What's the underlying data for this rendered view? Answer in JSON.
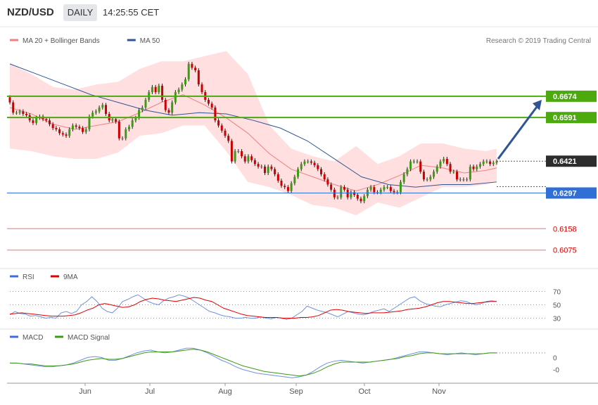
{
  "header": {
    "symbol": "NZD/USD",
    "timeframe": "DAILY",
    "time": "14:25:55 CET"
  },
  "price_panel": {
    "legend": [
      {
        "label": "MA 20 + Bollinger Bands",
        "color": "#f08080"
      },
      {
        "label": "MA 50",
        "color": "#2f5597"
      }
    ],
    "credit": "Research © 2019 Trading Central"
  },
  "levels": {
    "green": [
      {
        "value": 0.6674,
        "label": "0.6674"
      },
      {
        "value": 0.6591,
        "label": "0.6591"
      }
    ],
    "current": {
      "value": 0.6421,
      "label": "0.6421"
    },
    "blue": {
      "value": 0.6297,
      "label": "0.6297"
    },
    "red": [
      {
        "value": 0.6158,
        "label": "0.6158"
      },
      {
        "value": 0.6075,
        "label": "0.6075"
      }
    ]
  },
  "rsi_panel": {
    "legend": [
      {
        "label": "RSI",
        "color": "#4169e1"
      },
      {
        "label": "9MA",
        "color": "#e00000"
      }
    ],
    "ticks": [
      "70",
      "50",
      "30"
    ]
  },
  "macd_panel": {
    "legend": [
      {
        "label": "MACD",
        "color": "#4169e1"
      },
      {
        "label": "MACD Signal",
        "color": "#3c9a14"
      }
    ],
    "ticks": [
      "0",
      "-0"
    ]
  },
  "x_axis": {
    "months": [
      "Jun",
      "Jul",
      "Aug",
      "Sep",
      "Oct",
      "Nov"
    ]
  },
  "colors": {
    "bull": "#3c9a14",
    "bear": "#cc0000",
    "band": "#ffd9d9",
    "ma20": "#f08080",
    "ma50": "#2f5597",
    "arrow": "#2f5597"
  },
  "chart_data": [
    {
      "type": "candlestick",
      "title": "NZD/USD",
      "timeframe": "DAILY",
      "ylim": [
        0.603,
        0.689
      ],
      "series": [
        {
          "name": "MA 20 + Bollinger Bands",
          "values_x": [
            0,
            8,
            16,
            24,
            32,
            40,
            48,
            56,
            64,
            72,
            80,
            88,
            96,
            104,
            112,
            120,
            128,
            136,
            144,
            152,
            160,
            168,
            176,
            180
          ],
          "mid": [
            0.663,
            0.6605,
            0.6565,
            0.6545,
            0.656,
            0.6575,
            0.661,
            0.665,
            0.668,
            0.664,
            0.659,
            0.653,
            0.645,
            0.639,
            0.636,
            0.633,
            0.6305,
            0.633,
            0.6365,
            0.6405,
            0.6395,
            0.6375,
            0.6385,
            0.6395
          ],
          "upper": [
            0.68,
            0.676,
            0.671,
            0.67,
            0.672,
            0.673,
            0.678,
            0.681,
            0.681,
            0.683,
            0.685,
            0.676,
            0.656,
            0.647,
            0.644,
            0.642,
            0.648,
            0.641,
            0.644,
            0.649,
            0.649,
            0.647,
            0.646,
            0.647
          ],
          "lower": [
            0.647,
            0.646,
            0.644,
            0.643,
            0.643,
            0.6455,
            0.652,
            0.653,
            0.656,
            0.656,
            0.646,
            0.634,
            0.632,
            0.629,
            0.625,
            0.624,
            0.621,
            0.626,
            0.624,
            0.628,
            0.632,
            0.632,
            0.633,
            0.634
          ]
        },
        {
          "name": "MA 50",
          "values_x": [
            0,
            10,
            20,
            30,
            40,
            50,
            60,
            70,
            80,
            90,
            100,
            110,
            120,
            130,
            140,
            150,
            160,
            170,
            180
          ],
          "values": [
            0.68,
            0.676,
            0.672,
            0.668,
            0.665,
            0.662,
            0.66,
            0.661,
            0.6605,
            0.658,
            0.655,
            0.65,
            0.643,
            0.636,
            0.633,
            0.632,
            0.633,
            0.633,
            0.634
          ]
        }
      ],
      "candles": {
        "start_index": 0,
        "closes": [
          0.665,
          0.661,
          0.661,
          0.6615,
          0.6605,
          0.66,
          0.658,
          0.657,
          0.659,
          0.6595,
          0.6585,
          0.658,
          0.6565,
          0.655,
          0.6545,
          0.653,
          0.6525,
          0.652,
          0.6545,
          0.656,
          0.6555,
          0.655,
          0.6535,
          0.6545,
          0.6595,
          0.661,
          0.6615,
          0.663,
          0.664,
          0.6605,
          0.658,
          0.6585,
          0.6575,
          0.651,
          0.651,
          0.6545,
          0.6555,
          0.658,
          0.659,
          0.662,
          0.663,
          0.666,
          0.669,
          0.671,
          0.669,
          0.6715,
          0.666,
          0.662,
          0.661,
          0.665,
          0.669,
          0.67,
          0.672,
          0.674,
          0.68,
          0.6785,
          0.6775,
          0.672,
          0.669,
          0.666,
          0.6645,
          0.663,
          0.658,
          0.656,
          0.654,
          0.652,
          0.65,
          0.642,
          0.646,
          0.646,
          0.644,
          0.642,
          0.644,
          0.6425,
          0.641,
          0.64,
          0.64,
          0.6375,
          0.64,
          0.639,
          0.637,
          0.6345,
          0.6325,
          0.632,
          0.6305,
          0.6335,
          0.636,
          0.639,
          0.641,
          0.642,
          0.642,
          0.6415,
          0.6405,
          0.639,
          0.637,
          0.635,
          0.633,
          0.631,
          0.628,
          0.628,
          0.632,
          0.631,
          0.628,
          0.63,
          0.629,
          0.6275,
          0.6265,
          0.6285,
          0.631,
          0.632,
          0.63,
          0.63,
          0.631,
          0.632,
          0.632,
          0.6305,
          0.63,
          0.63,
          0.634,
          0.637,
          0.639,
          0.642,
          0.642,
          0.642,
          0.638,
          0.635,
          0.635,
          0.636,
          0.638,
          0.64,
          0.642,
          0.643,
          0.641,
          0.638,
          0.638,
          0.635,
          0.635,
          0.635,
          0.635,
          0.64,
          0.639,
          0.64,
          0.641,
          0.642,
          0.642,
          0.641,
          0.6415,
          0.642
        ],
        "note_values_x_max": 180
      }
    },
    {
      "type": "line",
      "title": "RSI",
      "ylim": [
        20,
        80
      ],
      "ticks": [
        70,
        50,
        30
      ],
      "series": [
        {
          "name": "RSI",
          "values": [
            35,
            40,
            37,
            36,
            33,
            34,
            32,
            30,
            31,
            30,
            38,
            40,
            37,
            40,
            50,
            55,
            62,
            55,
            45,
            40,
            38,
            45,
            55,
            58,
            62,
            65,
            60,
            55,
            52,
            50,
            56,
            60,
            62,
            65,
            63,
            60,
            55,
            50,
            45,
            40,
            38,
            35,
            33,
            32,
            30,
            30,
            31,
            30,
            30,
            32,
            30,
            29,
            31,
            30,
            28,
            30,
            35,
            40,
            48,
            45,
            42,
            40,
            38,
            35,
            32,
            36,
            40,
            38,
            36,
            35,
            37,
            40,
            42,
            44,
            40,
            45,
            50,
            55,
            60,
            62,
            56,
            52,
            50,
            48,
            47,
            50,
            52,
            54,
            56,
            55,
            52,
            50,
            52,
            55,
            56,
            55
          ]
        },
        {
          "name": "9MA",
          "values": [
            36,
            37,
            38,
            37,
            36,
            35,
            34,
            33,
            33,
            33,
            34,
            35,
            38,
            42,
            45,
            50,
            52,
            50,
            48,
            46,
            47,
            50,
            55,
            58,
            60,
            59,
            57,
            56,
            55,
            57,
            59,
            61,
            60,
            57,
            55,
            50,
            45,
            42,
            39,
            36,
            34,
            33,
            32,
            31,
            31,
            31,
            30,
            30,
            30,
            31,
            31,
            32,
            34,
            38,
            42,
            43,
            42,
            40,
            39,
            38,
            37,
            38,
            38,
            38,
            39,
            40,
            41,
            43,
            44,
            45,
            47,
            50,
            53,
            55,
            55,
            54,
            53,
            52,
            52,
            53,
            54,
            55,
            55
          ]
        }
      ]
    },
    {
      "type": "line",
      "title": "MACD",
      "ticks": [
        "0",
        "-0"
      ],
      "series": [
        {
          "name": "MACD",
          "values": [
            -0.6,
            -0.6,
            -0.7,
            -0.8,
            -0.9,
            -1.0,
            -1.0,
            -0.9,
            -0.8,
            -0.6,
            -0.3,
            0.0,
            0.1,
            0.0,
            -0.3,
            -0.3,
            -0.1,
            0.2,
            0.5,
            0.7,
            0.8,
            0.6,
            0.5,
            0.6,
            0.8,
            1.0,
            1.0,
            0.8,
            0.5,
            0.1,
            -0.3,
            -0.6,
            -1.0,
            -1.3,
            -1.5,
            -1.7,
            -1.8,
            -1.9,
            -2.0,
            -2.1,
            -2.2,
            -2.1,
            -1.9,
            -1.5,
            -1.0,
            -0.6,
            -0.4,
            -0.3,
            -0.4,
            -0.5,
            -0.6,
            -0.5,
            -0.4,
            -0.3,
            -0.2,
            0.0,
            0.2,
            0.4,
            0.6,
            0.6,
            0.5,
            0.4,
            0.3,
            0.4,
            0.5,
            0.4,
            0.3,
            0.4,
            0.5,
            0.5
          ]
        },
        {
          "name": "MACD Signal",
          "values": [
            -0.6,
            -0.6,
            -0.7,
            -0.7,
            -0.8,
            -0.9,
            -0.9,
            -0.9,
            -0.8,
            -0.7,
            -0.5,
            -0.3,
            -0.2,
            -0.1,
            -0.2,
            -0.2,
            -0.1,
            0.1,
            0.3,
            0.5,
            0.6,
            0.6,
            0.6,
            0.6,
            0.7,
            0.8,
            0.9,
            0.8,
            0.6,
            0.3,
            0.0,
            -0.3,
            -0.6,
            -0.9,
            -1.1,
            -1.3,
            -1.5,
            -1.6,
            -1.7,
            -1.8,
            -1.9,
            -2.0,
            -1.9,
            -1.7,
            -1.4,
            -1.0,
            -0.7,
            -0.5,
            -0.5,
            -0.5,
            -0.5,
            -0.5,
            -0.4,
            -0.3,
            -0.2,
            -0.1,
            0.1,
            0.2,
            0.4,
            0.5,
            0.5,
            0.4,
            0.4,
            0.4,
            0.4,
            0.4,
            0.4,
            0.4,
            0.5,
            0.5
          ]
        }
      ]
    }
  ]
}
